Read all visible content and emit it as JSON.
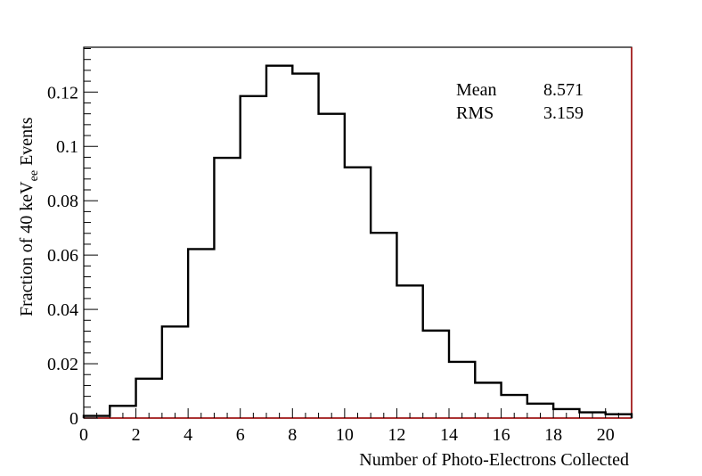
{
  "chart_data": {
    "type": "bar",
    "style": "step-histogram",
    "xlabel": "Number of Photo-Electrons Collected",
    "ylabel": {
      "prefix": "Fraction of 40 keV",
      "subscript": "ee",
      "suffix": " Events"
    },
    "xlim": [
      0,
      21
    ],
    "ylim": [
      0,
      0.1365
    ],
    "x_ticks": [
      0,
      2,
      4,
      6,
      8,
      10,
      12,
      14,
      16,
      18,
      20
    ],
    "x_tick_labels": [
      "0",
      "2",
      "4",
      "6",
      "8",
      "10",
      "12",
      "14",
      "16",
      "18",
      "20"
    ],
    "y_ticks": [
      0,
      0.02,
      0.04,
      0.06,
      0.08,
      0.1,
      0.12
    ],
    "y_tick_labels": [
      "0",
      "0.02",
      "0.04",
      "0.06",
      "0.08",
      "0.1",
      "0.12"
    ],
    "bin_edges": [
      0,
      1,
      2,
      3,
      4,
      5,
      6,
      7,
      8,
      9,
      10,
      11,
      12,
      13,
      14,
      15,
      16,
      17,
      18,
      19,
      20,
      21
    ],
    "values": [
      0.0008,
      0.0045,
      0.0145,
      0.0337,
      0.0622,
      0.0958,
      0.1185,
      0.1297,
      0.1268,
      0.112,
      0.0923,
      0.0682,
      0.0488,
      0.0322,
      0.0207,
      0.013,
      0.0085,
      0.0053,
      0.0033,
      0.0021,
      0.0014
    ],
    "line_color": "#000000",
    "baseline_color": "#a00000",
    "grid": false,
    "legend": "none",
    "stats": {
      "rows": [
        {
          "label": "Mean",
          "value": "8.571"
        },
        {
          "label": "RMS",
          "value": "3.159"
        }
      ]
    }
  }
}
